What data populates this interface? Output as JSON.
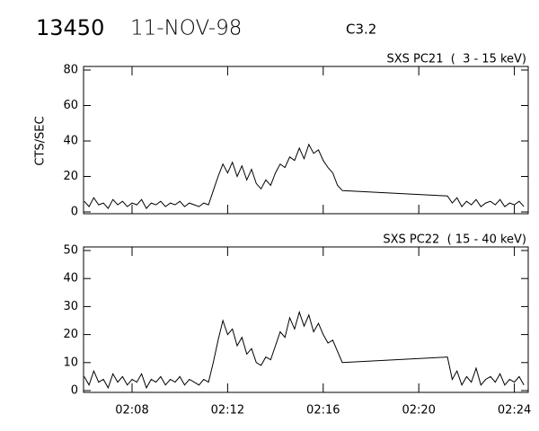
{
  "header": {
    "id": "13450",
    "date": "11-NOV-98",
    "class": "C3.2"
  },
  "chart_data": [
    {
      "type": "line",
      "title": "SXS PC21  (  3 - 15 keV)",
      "y_label": "CTS/SEC",
      "x": [
        126.0,
        126.2,
        126.4,
        126.6,
        126.8,
        127.0,
        127.2,
        127.4,
        127.6,
        127.8,
        128.0,
        128.2,
        128.4,
        128.6,
        128.8,
        129.0,
        129.2,
        129.4,
        129.6,
        129.8,
        130.0,
        130.2,
        130.4,
        130.6,
        130.8,
        131.0,
        131.2,
        131.4,
        131.6,
        131.8,
        132.0,
        132.2,
        132.4,
        132.6,
        132.8,
        133.0,
        133.2,
        133.4,
        133.6,
        133.8,
        134.0,
        134.2,
        134.4,
        134.6,
        134.8,
        135.0,
        135.2,
        135.4,
        135.6,
        135.8,
        136.0,
        136.2,
        136.4,
        136.6,
        136.8,
        141.2,
        141.4,
        141.6,
        141.8,
        142.0,
        142.2,
        142.4,
        142.6,
        142.8,
        143.0,
        143.2,
        143.4,
        143.6,
        143.8,
        144.0,
        144.2,
        144.4
      ],
      "series": [
        {
          "name": "PC21",
          "color": "#000000",
          "values": [
            6,
            3,
            8,
            4,
            5,
            2,
            7,
            4,
            6,
            3,
            5,
            4,
            7,
            2,
            5,
            4,
            6,
            3,
            5,
            4,
            6,
            3,
            5,
            4,
            3,
            5,
            4,
            12,
            20,
            27,
            22,
            28,
            20,
            26,
            18,
            24,
            16,
            13,
            18,
            15,
            22,
            27,
            25,
            31,
            29,
            36,
            30,
            38,
            33,
            35,
            29,
            25,
            22,
            15,
            12,
            9,
            5,
            8,
            3,
            6,
            4,
            7,
            3,
            5,
            6,
            4,
            7,
            3,
            5,
            4,
            6,
            3
          ]
        }
      ],
      "xlim": [
        125.97,
        144.58
      ],
      "ylim": [
        0,
        80
      ],
      "yticks": [
        0,
        20,
        40,
        60,
        80
      ]
    },
    {
      "type": "line",
      "title": "SXS PC22  ( 15 - 40 keV)",
      "x": [
        126.0,
        126.2,
        126.4,
        126.6,
        126.8,
        127.0,
        127.2,
        127.4,
        127.6,
        127.8,
        128.0,
        128.2,
        128.4,
        128.6,
        128.8,
        129.0,
        129.2,
        129.4,
        129.6,
        129.8,
        130.0,
        130.2,
        130.4,
        130.6,
        130.8,
        131.0,
        131.2,
        131.4,
        131.6,
        131.8,
        132.0,
        132.2,
        132.4,
        132.6,
        132.8,
        133.0,
        133.2,
        133.4,
        133.6,
        133.8,
        134.0,
        134.2,
        134.4,
        134.6,
        134.8,
        135.0,
        135.2,
        135.4,
        135.6,
        135.8,
        136.0,
        136.2,
        136.4,
        136.6,
        136.8,
        141.2,
        141.4,
        141.6,
        141.8,
        142.0,
        142.2,
        142.4,
        142.6,
        142.8,
        143.0,
        143.2,
        143.4,
        143.6,
        143.8,
        144.0,
        144.2,
        144.4
      ],
      "series": [
        {
          "name": "PC22",
          "color": "#000000",
          "values": [
            5,
            2,
            7,
            3,
            4,
            1,
            6,
            3,
            5,
            2,
            4,
            3,
            6,
            1,
            4,
            3,
            5,
            2,
            4,
            3,
            5,
            2,
            4,
            3,
            2,
            4,
            3,
            10,
            18,
            25,
            20,
            22,
            16,
            19,
            13,
            15,
            10,
            9,
            12,
            11,
            16,
            21,
            19,
            26,
            22,
            28,
            23,
            27,
            21,
            24,
            20,
            17,
            18,
            14,
            10,
            12,
            4,
            7,
            2,
            5,
            3,
            8,
            2,
            4,
            5,
            3,
            6,
            2,
            4,
            3,
            5,
            2
          ]
        }
      ],
      "xlim": [
        125.97,
        144.58
      ],
      "ylim": [
        0,
        50
      ],
      "yticks": [
        0,
        10,
        20,
        30,
        40,
        50
      ],
      "xticks": [
        {
          "value": 128,
          "label": "02:08"
        },
        {
          "value": 132,
          "label": "02:12"
        },
        {
          "value": 136,
          "label": "02:16"
        },
        {
          "value": 140,
          "label": "02:20"
        },
        {
          "value": 144,
          "label": "02:24"
        }
      ]
    }
  ]
}
